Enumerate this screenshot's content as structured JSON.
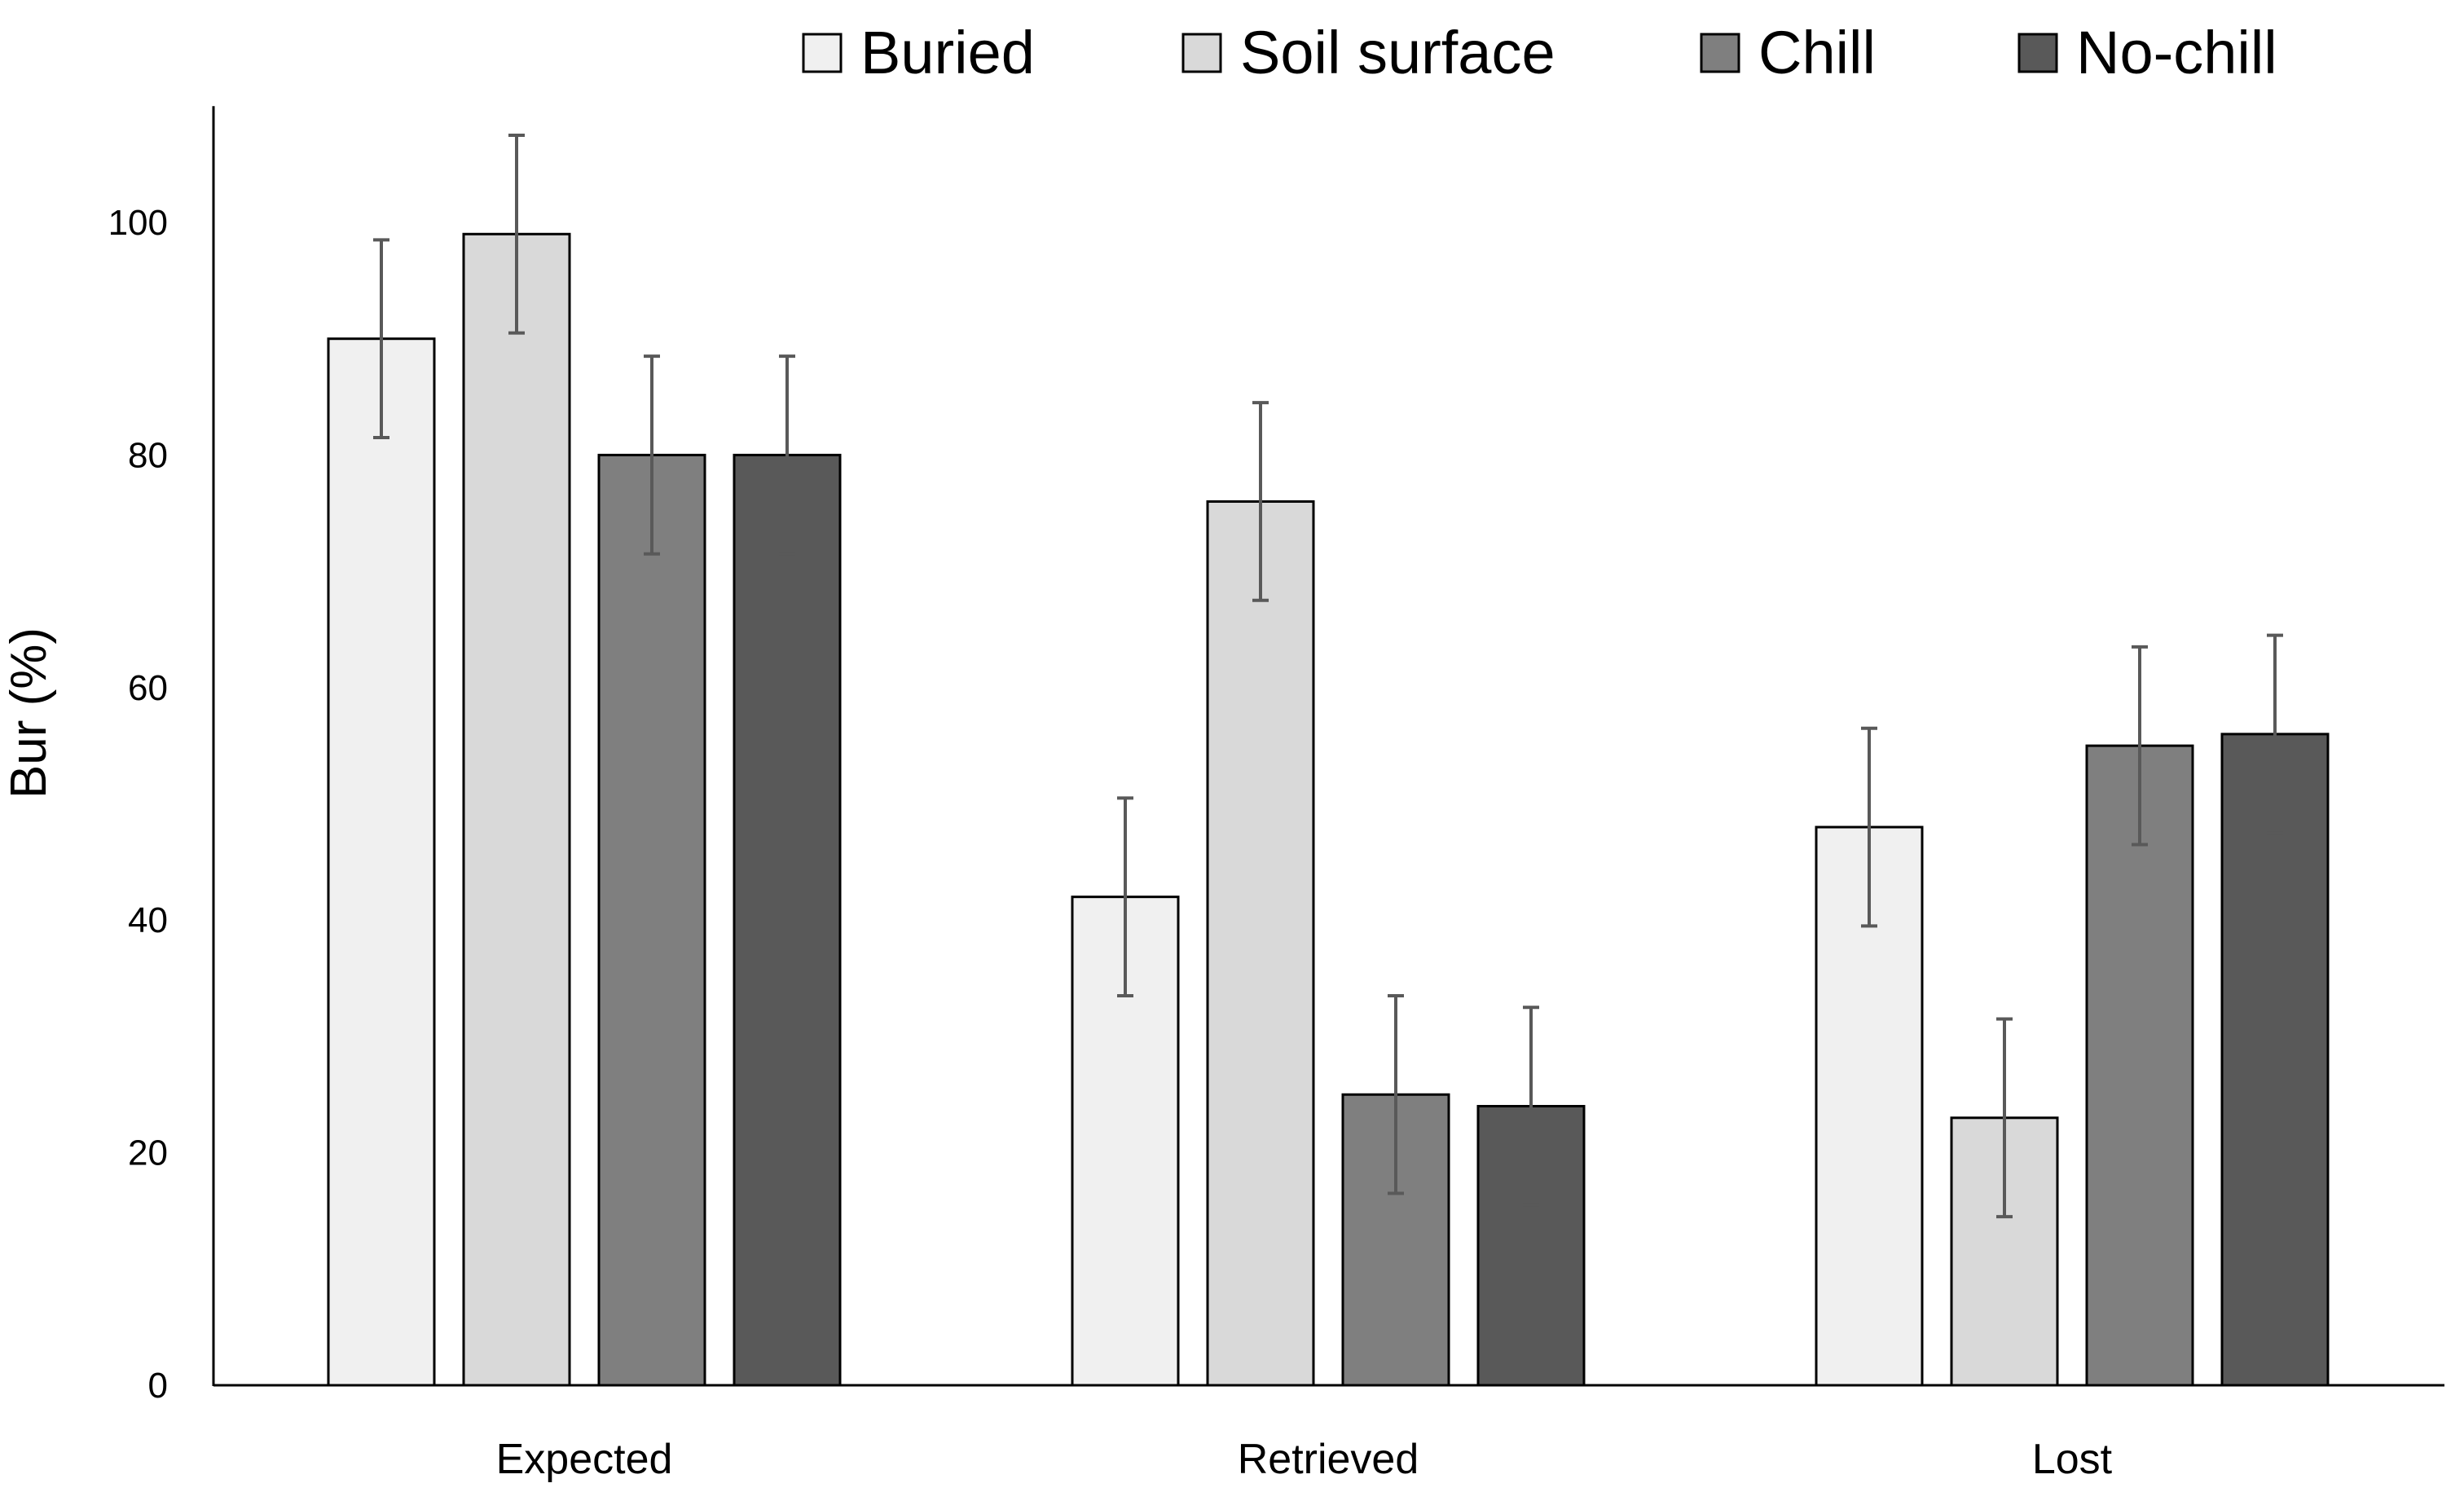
{
  "chart_data": {
    "type": "bar",
    "title": "",
    "xlabel": "",
    "ylabel": "Bur (%)",
    "ylim": [
      0,
      110
    ],
    "yticks": [
      0,
      20,
      40,
      60,
      80,
      100
    ],
    "grid": false,
    "legend_position": "top",
    "categories": [
      "Expected",
      "Retrieved",
      "Lost"
    ],
    "series": [
      {
        "name": "Buried",
        "color": "#f0f0f0",
        "values": [
          90,
          42,
          48
        ],
        "errors": [
          8.5,
          8.5,
          8.5
        ]
      },
      {
        "name": "Soil surface",
        "color": "#d9d9d9",
        "values": [
          99,
          76,
          23
        ],
        "errors": [
          8.5,
          8.5,
          8.5
        ]
      },
      {
        "name": "Chill",
        "color": "#7f7f7f",
        "values": [
          80,
          25,
          55
        ],
        "errors": [
          8.5,
          8.5,
          8.5
        ]
      },
      {
        "name": "No-chill",
        "color": "#595959",
        "values": [
          80,
          24,
          56
        ],
        "errors": [
          8.5,
          8.5,
          8.5
        ]
      }
    ]
  }
}
